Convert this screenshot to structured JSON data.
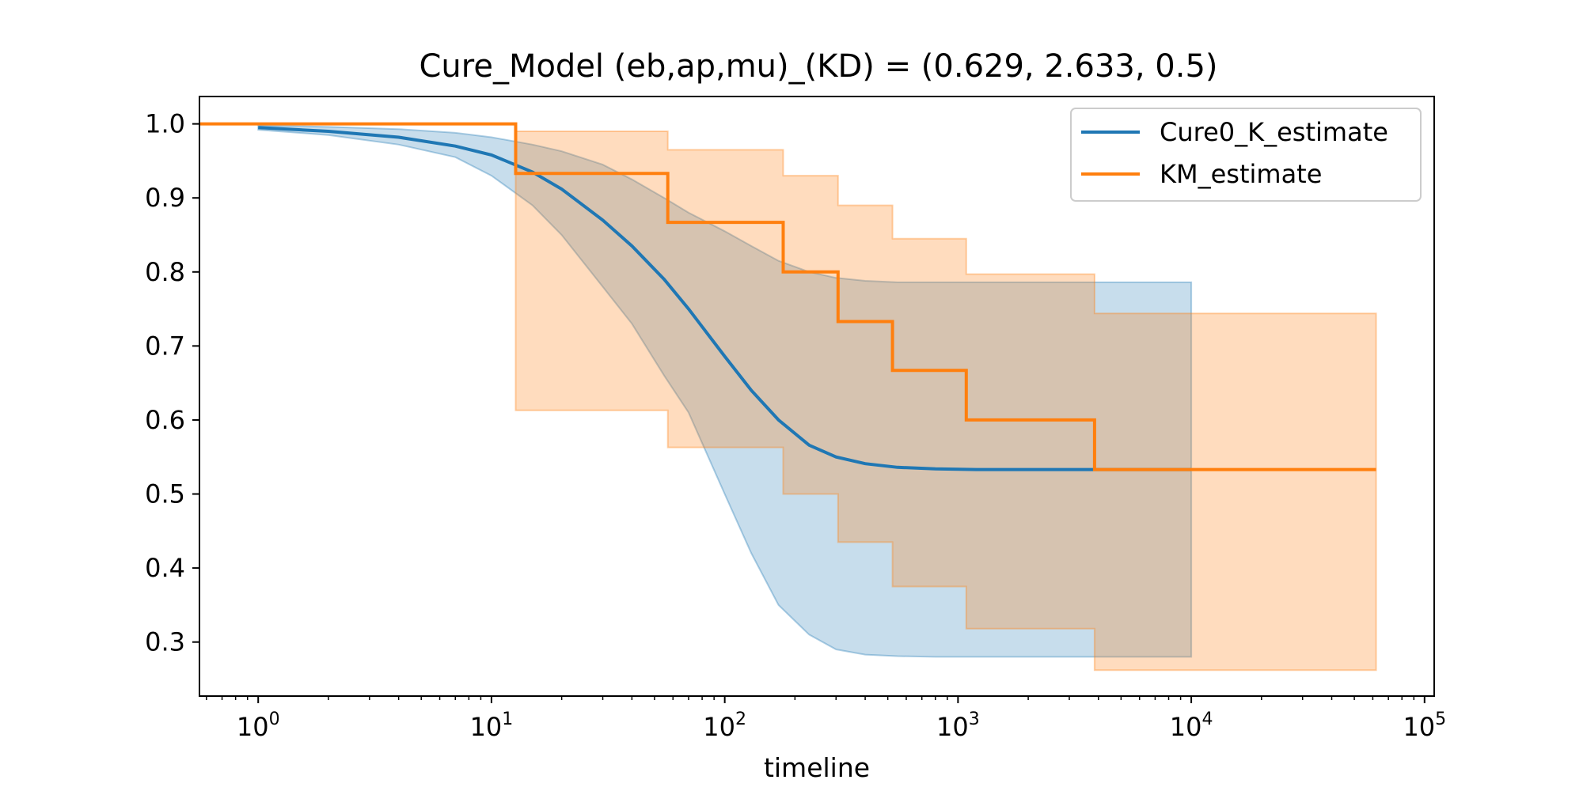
{
  "chart_data": {
    "type": "line",
    "title": "Cure_Model (eb,ap,mu)_(KD) = (0.629, 2.633, 0.5)",
    "xlabel": "timeline",
    "ylabel": "",
    "xscale": "log",
    "xlim": [
      0.56,
      110000
    ],
    "ylim": [
      0.227,
      1.037
    ],
    "grid": false,
    "legend_position": "top-right",
    "x_ticks": [
      1,
      10,
      100,
      1000,
      10000,
      100000
    ],
    "x_tick_labels": [
      {
        "base": "10",
        "exp": "0"
      },
      {
        "base": "10",
        "exp": "1"
      },
      {
        "base": "10",
        "exp": "2"
      },
      {
        "base": "10",
        "exp": "3"
      },
      {
        "base": "10",
        "exp": "4"
      },
      {
        "base": "10",
        "exp": "5"
      }
    ],
    "y_ticks": [
      1.0,
      0.9,
      0.8,
      0.7,
      0.6,
      0.5,
      0.4,
      0.3
    ],
    "y_tick_labels": [
      "1.0",
      "0.9",
      "0.8",
      "0.7",
      "0.6",
      "0.5",
      "0.4",
      "0.3"
    ],
    "series": [
      {
        "name": "Cure0_K_estimate",
        "color": "#1f77b4",
        "kind": "curve",
        "x": [
          1,
          2,
          4,
          7,
          10,
          15,
          20,
          30,
          40,
          55,
          70,
          100,
          130,
          170,
          230,
          300,
          400,
          550,
          800,
          1200,
          2000,
          4000,
          10000
        ],
        "y": [
          0.995,
          0.99,
          0.982,
          0.97,
          0.958,
          0.935,
          0.912,
          0.87,
          0.835,
          0.79,
          0.75,
          0.686,
          0.64,
          0.6,
          0.566,
          0.55,
          0.541,
          0.536,
          0.534,
          0.533,
          0.533,
          0.533,
          0.533
        ],
        "ci_upper": [
          0.998,
          0.996,
          0.993,
          0.988,
          0.982,
          0.972,
          0.963,
          0.945,
          0.925,
          0.9,
          0.88,
          0.855,
          0.835,
          0.815,
          0.8,
          0.792,
          0.788,
          0.786,
          0.786,
          0.786,
          0.786,
          0.786,
          0.786
        ],
        "ci_lower": [
          0.992,
          0.985,
          0.972,
          0.955,
          0.93,
          0.89,
          0.85,
          0.78,
          0.73,
          0.66,
          0.61,
          0.5,
          0.42,
          0.35,
          0.31,
          0.29,
          0.283,
          0.281,
          0.28,
          0.28,
          0.28,
          0.28,
          0.28
        ]
      },
      {
        "name": "KM_estimate",
        "color": "#ff7f0e",
        "kind": "step",
        "x": [
          0.56,
          12.7,
          57,
          178,
          306,
          524,
          1085,
          3850,
          62000
        ],
        "y": [
          1.0,
          0.933,
          0.867,
          0.8,
          0.733,
          0.667,
          0.6,
          0.533,
          0.533
        ],
        "ci_upper": [
          1.0,
          0.99,
          0.965,
          0.93,
          0.89,
          0.845,
          0.797,
          0.744,
          0.744
        ],
        "ci_lower": [
          1.0,
          0.613,
          0.563,
          0.5,
          0.435,
          0.375,
          0.318,
          0.262,
          0.262
        ]
      }
    ]
  }
}
